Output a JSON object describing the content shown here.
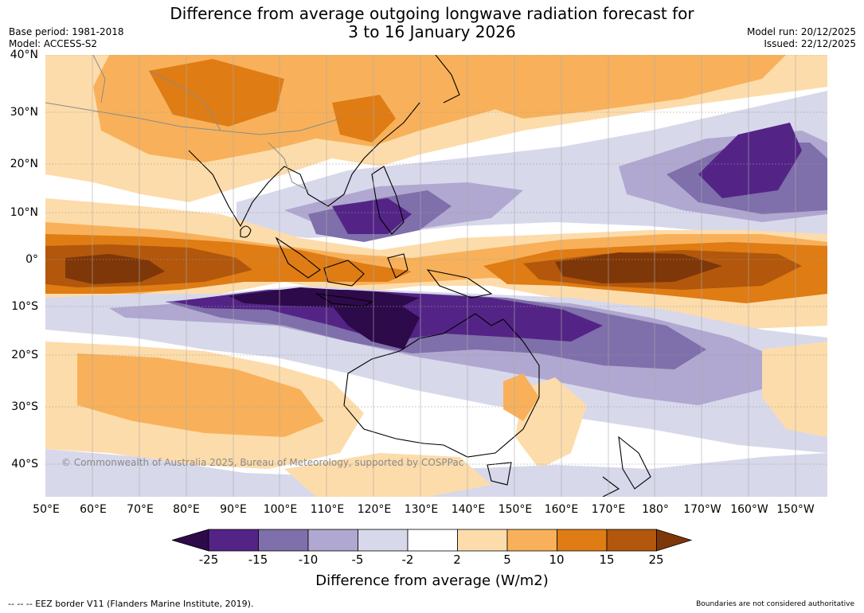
{
  "title": {
    "line1": "Difference from average outgoing longwave radiation forecast for",
    "line2": "3 to 16 January 2026"
  },
  "meta": {
    "base_period": "Base period: 1981-2018",
    "model": "Model: ACCESS-S2",
    "model_run": "Model run: 20/12/2025",
    "issued": "Issued: 22/12/2025"
  },
  "map": {
    "copyright": "© Commonwealth of Australia 2025, Bureau of Meteorology, supported by COSPPac",
    "lat_labels": [
      "40°N",
      "30°N",
      "20°N",
      "10°N",
      "0°",
      "10°S",
      "20°S",
      "30°S",
      "40°S"
    ],
    "lon_labels": [
      "50°E",
      "60°E",
      "70°E",
      "80°E",
      "90°E",
      "100°E",
      "110°E",
      "120°E",
      "130°E",
      "140°E",
      "150°E",
      "160°E",
      "170°E",
      "180°",
      "170°W",
      "160°W",
      "150°W"
    ]
  },
  "colorbar": {
    "title": "Difference from average (W/m2)",
    "tick_labels": [
      "-25",
      "-15",
      "-10",
      "-5",
      "-2",
      "2",
      "5",
      "10",
      "15",
      "25"
    ],
    "colors": [
      "#2d0a4a",
      "#532486",
      "#7f6fab",
      "#b0a8d0",
      "#d8d8eb",
      "#ffffff",
      "#fddcab",
      "#f8b15a",
      "#df7c14",
      "#b2570b",
      "#7e3708"
    ]
  },
  "footer": {
    "eez_note": "--  --  -- EEZ border V11 (Flanders Marine Institute, 2019).",
    "disclaimer": "Boundaries are not considered authoritative"
  }
}
